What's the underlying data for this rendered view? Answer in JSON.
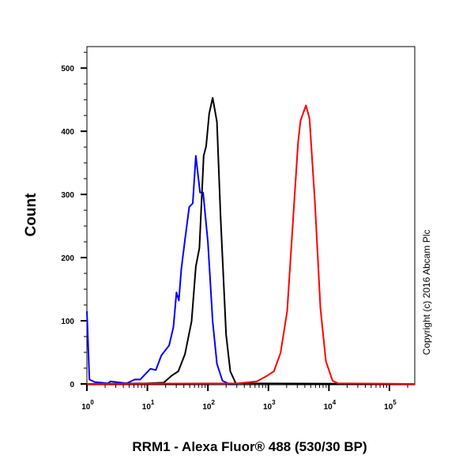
{
  "chart_data": {
    "type": "line",
    "title": "",
    "xlabel": "RRM1 - Alexa Fluor® 488 (530/30 BP)",
    "ylabel": "Count",
    "x_scale": "log",
    "xlim": [
      1,
      262144
    ],
    "ylim": [
      0,
      534
    ],
    "grid": false,
    "legend": "none",
    "x_ticks": [
      {
        "base": "10",
        "exp": "0",
        "value": 1
      },
      {
        "base": "10",
        "exp": "1",
        "value": 10
      },
      {
        "base": "10",
        "exp": "2",
        "value": 100
      },
      {
        "base": "10",
        "exp": "3",
        "value": 1000
      },
      {
        "base": "10",
        "exp": "4",
        "value": 10000
      },
      {
        "base": "10",
        "exp": "5",
        "value": 100000
      }
    ],
    "y_ticks": [
      "0",
      "100",
      "200",
      "300",
      "400",
      "500"
    ],
    "series": [
      {
        "color": "#0000ff",
        "points": [
          [
            1,
            115
          ],
          [
            1.1,
            7
          ],
          [
            1.35,
            3
          ],
          [
            2.24,
            1
          ],
          [
            2.45,
            4
          ],
          [
            4.57,
            1
          ],
          [
            6.17,
            7
          ],
          [
            7.59,
            7
          ],
          [
            11.2,
            24
          ],
          [
            13.8,
            22
          ],
          [
            17.0,
            45
          ],
          [
            22.9,
            61
          ],
          [
            26.9,
            90
          ],
          [
            30.2,
            145
          ],
          [
            33.1,
            132
          ],
          [
            36.3,
            182
          ],
          [
            41.7,
            228
          ],
          [
            49.0,
            280
          ],
          [
            56.2,
            286
          ],
          [
            63.1,
            361
          ],
          [
            74.1,
            303
          ],
          [
            83.2,
            303
          ],
          [
            100,
            224
          ],
          [
            120,
            99
          ],
          [
            141,
            32
          ],
          [
            174,
            5
          ],
          [
            214,
            1
          ],
          [
            300,
            0
          ]
        ]
      },
      {
        "color": "#000000",
        "points": [
          [
            1,
            0
          ],
          [
            10,
            1
          ],
          [
            18.6,
            2
          ],
          [
            25.1,
            13
          ],
          [
            32.4,
            20
          ],
          [
            41.7,
            47
          ],
          [
            53.7,
            99
          ],
          [
            63.1,
            186
          ],
          [
            72.4,
            215
          ],
          [
            85.1,
            361
          ],
          [
            93.3,
            376
          ],
          [
            105,
            428
          ],
          [
            120,
            453
          ],
          [
            141,
            415
          ],
          [
            162,
            265
          ],
          [
            200,
            78
          ],
          [
            234,
            20
          ],
          [
            288,
            1
          ],
          [
            262144,
            0
          ]
        ]
      },
      {
        "color": "#ff0000",
        "points": [
          [
            1,
            0
          ],
          [
            316,
            1
          ],
          [
            646,
            4
          ],
          [
            955,
            13
          ],
          [
            1230,
            20
          ],
          [
            1585,
            49
          ],
          [
            2042,
            115
          ],
          [
            2512,
            249
          ],
          [
            3090,
            382
          ],
          [
            3388,
            417
          ],
          [
            4169,
            441
          ],
          [
            4786,
            420
          ],
          [
            5888,
            286
          ],
          [
            7244,
            120
          ],
          [
            8913,
            36
          ],
          [
            11482,
            5
          ],
          [
            14125,
            1
          ],
          [
            262144,
            0
          ]
        ]
      }
    ],
    "annotation": "Copyright (c) 2016 Abcam Plc"
  }
}
